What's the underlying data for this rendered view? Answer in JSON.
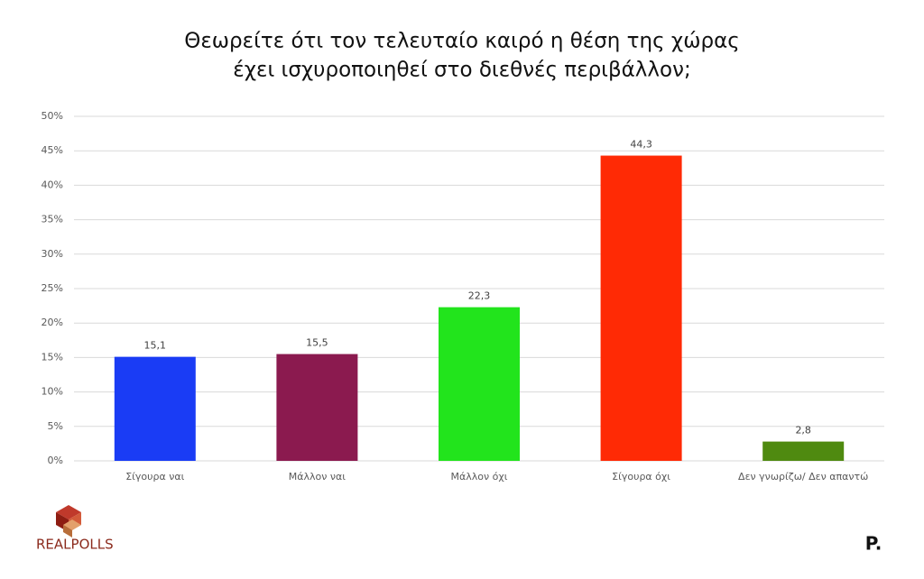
{
  "chart_data": {
    "type": "bar",
    "title": [
      "Θεωρείτε ότι τον τελευταίο καιρό η θέση της χώρας",
      "έχει ισχυροποιηθεί στο διεθνές περιβάλλον;"
    ],
    "categories": [
      "Σίγουρα ναι",
      "Μάλλον ναι",
      "Μάλλον όχι",
      "Σίγουρα όχι",
      "Δεν γνωρίζω/ Δεν απαντώ"
    ],
    "values": [
      15.1,
      15.5,
      22.3,
      44.3,
      2.8
    ],
    "value_labels": [
      "15,1",
      "15,5",
      "22,3",
      "44,3",
      "2,8"
    ],
    "colors": [
      "#1a3cf5",
      "#8b1a4f",
      "#22e41c",
      "#ff2a05",
      "#4f8a10"
    ],
    "ylim": [
      0,
      50
    ],
    "yticks": [
      {
        "value": 0,
        "label": "0%"
      },
      {
        "value": 5,
        "label": "5%"
      },
      {
        "value": 10,
        "label": "10%"
      },
      {
        "value": 15,
        "label": "15%"
      },
      {
        "value": 20,
        "label": "20%"
      },
      {
        "value": 25,
        "label": "25%"
      },
      {
        "value": 30,
        "label": "30%"
      },
      {
        "value": 35,
        "label": "35%"
      },
      {
        "value": 40,
        "label": "40%"
      },
      {
        "value": 45,
        "label": "45%"
      },
      {
        "value": 50,
        "label": "50%"
      }
    ],
    "grid": true
  },
  "logo": "REALPOLLS",
  "brand_mark": "P."
}
